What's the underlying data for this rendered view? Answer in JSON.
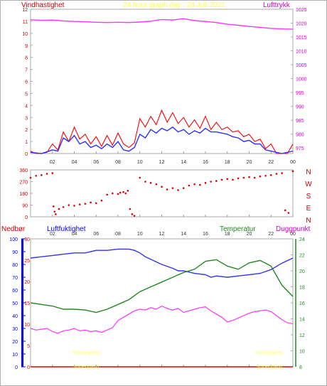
{
  "header": {
    "left_label": "Vindhastighet",
    "title": "24 hour graph day : 24 Juli 2021",
    "right_label": "Lufttrykk"
  },
  "colors": {
    "wind_speed": "#ff0000",
    "wind_avg": "#3030ff",
    "pressure": "#ff33ff",
    "direction": "#dd0000",
    "humidity": "#3333ee",
    "temperature": "#228822",
    "dewpoint": "#ff33ff",
    "rain": "#dd0000",
    "sun": "#ffff66",
    "left_axis": "#cc0000",
    "right_axis": "#cc00cc",
    "temp_axis": "#228822",
    "rain_axis": "#0000ee"
  },
  "x_ticks": [
    "02",
    "04",
    "06",
    "08",
    "10",
    "12",
    "14",
    "16",
    "18",
    "20",
    "22",
    "00"
  ],
  "panel1": {
    "left_ticks": [
      "0",
      "1",
      "2",
      "3",
      "4",
      "5",
      "6",
      "7",
      "8",
      "9",
      "10",
      "11",
      "12"
    ],
    "right_ticks": [
      "975",
      "980",
      "985",
      "990",
      "995",
      "1000",
      "1005",
      "1010",
      "1015",
      "1020",
      "1025"
    ]
  },
  "panel2": {
    "left_ticks": [
      "0",
      "90",
      "180",
      "270",
      "360"
    ],
    "compass": [
      "N",
      "W",
      "S",
      "E",
      "N"
    ]
  },
  "panel3": {
    "labels": {
      "rain": "Nedbør",
      "humidity": "Luftfuktighet",
      "temperature": "Temperatur",
      "dewpoint": "Duggpunkt"
    },
    "rain_ticks": [
      "0",
      "10",
      "20",
      "30",
      "40",
      "50",
      "60",
      "70",
      "80",
      "90",
      "100"
    ],
    "hum_ticks": [
      "0",
      "5",
      "10",
      "15",
      "20",
      "25",
      "30"
    ],
    "temp_ticks": [
      "8",
      "10",
      "12",
      "14",
      "16",
      "18",
      "20",
      "22",
      "24"
    ],
    "sun_labels": [
      "Soloppgang",
      "Solnedgang",
      "Soloppgang",
      "Solnedgang"
    ]
  },
  "chart_data": [
    {
      "type": "line",
      "x_unit": "hour",
      "xlim": [
        0,
        24
      ],
      "ylim_left": [
        0,
        12
      ],
      "ylim_right": [
        973,
        1025
      ],
      "series": [
        {
          "name": "Vindhastighet",
          "axis": "left",
          "x": [
            0,
            0.5,
            1,
            1.5,
            2,
            2.5,
            3,
            3.5,
            4,
            4.5,
            5,
            5.5,
            6,
            6.5,
            7,
            7.5,
            8,
            8.5,
            9,
            9.5,
            10,
            10.5,
            11,
            11.5,
            12,
            12.5,
            13,
            13.5,
            14,
            14.5,
            15,
            15.5,
            16,
            16.5,
            17,
            17.5,
            18,
            18.5,
            19,
            19.5,
            20,
            20.5,
            21,
            21.5,
            22,
            22.5,
            23,
            23.5,
            24
          ],
          "values": [
            0.2,
            0.0,
            0.0,
            0.1,
            0.8,
            0.3,
            1.8,
            1.0,
            2.2,
            1.2,
            1.6,
            0.8,
            1.4,
            0.6,
            1.5,
            0.7,
            1.7,
            0.8,
            0.5,
            0.9,
            2.9,
            2.2,
            3.1,
            2.4,
            3.6,
            2.6,
            3.4,
            2.5,
            3.0,
            2.2,
            2.8,
            2.1,
            3.1,
            2.0,
            2.6,
            2.0,
            2.2,
            1.8,
            1.9,
            1.4,
            1.6,
            1.0,
            1.2,
            0.4,
            0.8,
            0.0,
            0.0,
            0.0,
            0.8
          ]
        },
        {
          "name": "",
          "axis": "left",
          "x": [
            0,
            1,
            2,
            2.5,
            3,
            3.5,
            4,
            4.5,
            5,
            5.5,
            6,
            6.5,
            7,
            7.5,
            8,
            8.5,
            9,
            9.5,
            10,
            10.5,
            11,
            11.5,
            12,
            12.5,
            13,
            13.5,
            14,
            14.5,
            15,
            15.5,
            16,
            16.5,
            17,
            17.5,
            18,
            18.5,
            19,
            19.5,
            20,
            20.5,
            21,
            21.5,
            22,
            23,
            24
          ],
          "values": [
            0.1,
            0.0,
            0.3,
            0.2,
            1.3,
            1.0,
            1.5,
            0.8,
            1.0,
            0.5,
            0.7,
            0.4,
            0.8,
            0.5,
            1.0,
            0.3,
            0.2,
            0.5,
            1.6,
            1.3,
            2.0,
            1.7,
            2.1,
            1.9,
            2.2,
            1.8,
            2.0,
            1.6,
            1.9,
            1.7,
            2.1,
            1.8,
            1.8,
            1.7,
            1.6,
            1.4,
            1.3,
            1.0,
            1.1,
            0.8,
            0.8,
            0.3,
            0.2,
            0.0,
            0.2
          ]
        },
        {
          "name": "Lufttrykk",
          "axis": "right",
          "x": [
            0,
            1,
            2,
            3,
            4,
            5,
            6,
            7,
            8,
            9,
            10,
            11,
            12,
            13,
            14,
            15,
            16,
            17,
            18,
            19,
            20,
            21,
            22,
            23,
            24
          ],
          "values": [
            1021.2,
            1021.0,
            1021.1,
            1020.8,
            1020.6,
            1020.5,
            1020.3,
            1020.2,
            1020.3,
            1020.2,
            1020.4,
            1020.7,
            1021.3,
            1021.1,
            1021.6,
            1020.9,
            1020.6,
            1020.2,
            1019.6,
            1019.2,
            1018.8,
            1018.5,
            1018.1,
            1017.9,
            1017.8
          ]
        }
      ]
    },
    {
      "type": "scatter",
      "x_unit": "hour",
      "xlim": [
        0,
        24
      ],
      "ylim": [
        0,
        360
      ],
      "series": [
        {
          "name": "",
          "x": [
            0,
            0.5,
            1,
            1.5,
            2,
            2.1,
            2.2,
            2.3,
            2.6,
            3,
            3.5,
            4,
            4.5,
            5,
            5.5,
            6,
            6.5,
            7,
            7.5,
            8,
            8.2,
            8.5,
            8.7,
            8.9,
            9.1,
            9.3,
            9.5,
            10,
            10.5,
            11,
            11.5,
            12,
            12.5,
            13,
            13.5,
            14,
            14.5,
            15,
            15.5,
            16,
            16.5,
            17,
            17.5,
            18,
            18.5,
            19,
            19.5,
            20,
            20.5,
            21,
            21.5,
            22,
            22.5,
            23,
            23.3,
            23.6,
            24
          ],
          "values": [
            300,
            315,
            320,
            330,
            335,
            80,
            40,
            20,
            60,
            75,
            90,
            85,
            95,
            100,
            110,
            105,
            125,
            170,
            180,
            175,
            185,
            190,
            180,
            200,
            60,
            20,
            8,
            300,
            270,
            260,
            250,
            230,
            210,
            220,
            205,
            220,
            240,
            250,
            245,
            260,
            270,
            275,
            285,
            290,
            285,
            295,
            300,
            305,
            300,
            310,
            315,
            320,
            330,
            335,
            50,
            30,
            350
          ]
        }
      ]
    },
    {
      "type": "line",
      "x_unit": "hour",
      "xlim": [
        0,
        24
      ],
      "ylim_rain": [
        0,
        100
      ],
      "ylim_temp": [
        8,
        24
      ],
      "series": [
        {
          "name": "Luftfuktighet",
          "axis": "rain",
          "x": [
            0,
            1,
            2,
            3,
            4,
            5,
            6,
            7,
            8,
            9,
            9.5,
            10,
            10.5,
            11,
            11.5,
            12,
            13,
            13.5,
            14,
            15,
            16,
            16.5,
            17,
            18,
            19,
            20,
            21,
            22,
            23,
            24
          ],
          "values": [
            85,
            86,
            87,
            88,
            89,
            89,
            91,
            91,
            92,
            92,
            91,
            89,
            86,
            84,
            82,
            80,
            77,
            75,
            75,
            73,
            72,
            70,
            71,
            70,
            71,
            72,
            73,
            76,
            81,
            85
          ]
        },
        {
          "name": "Temperatur",
          "axis": "temp",
          "x": [
            0,
            1,
            2,
            3,
            4,
            5,
            6,
            7,
            8,
            9,
            10,
            11,
            12,
            13,
            14,
            15,
            16,
            17,
            18,
            19,
            20,
            21,
            22,
            23,
            24
          ],
          "values": [
            16.0,
            15.8,
            15.6,
            15.2,
            15.2,
            15.1,
            14.8,
            15.2,
            15.8,
            16.4,
            17.4,
            18.0,
            18.6,
            19.2,
            19.8,
            20.2,
            21.2,
            21.4,
            20.6,
            20.2,
            21.0,
            21.3,
            20.6,
            18.2,
            16.8
          ]
        },
        {
          "name": "Duggpunkt",
          "axis": "temp",
          "x": [
            0,
            0.5,
            1,
            1.5,
            2,
            2.5,
            3,
            3.5,
            4,
            4.5,
            5,
            5.5,
            6,
            6.5,
            7,
            7.5,
            8,
            8.5,
            9,
            9.5,
            10,
            10.5,
            11,
            11.5,
            12,
            12.5,
            13,
            13.5,
            14,
            14.5,
            15,
            15.5,
            16,
            16.5,
            17,
            17.5,
            18,
            18.5,
            19,
            19.5,
            20,
            20.5,
            21,
            21.5,
            22,
            22.5,
            23,
            23.5,
            24
          ],
          "values": [
            12.8,
            12.6,
            12.7,
            12.8,
            12.4,
            12.2,
            12.5,
            12.6,
            12.8,
            12.5,
            12.6,
            12.4,
            12.5,
            12.3,
            12.6,
            12.9,
            13.8,
            14.2,
            14.6,
            15.0,
            15.2,
            15.1,
            15.4,
            15.2,
            15.6,
            15.3,
            15.1,
            15.3,
            14.8,
            15.0,
            15.2,
            15.4,
            15.5,
            15.0,
            14.6,
            14.2,
            13.6,
            13.8,
            14.1,
            14.4,
            14.7,
            14.9,
            15.0,
            15.1,
            14.9,
            14.4,
            13.9,
            13.5,
            13.4
          ]
        },
        {
          "name": "Nedbør",
          "axis": "rain",
          "x": [
            0,
            24
          ],
          "values": [
            0,
            0
          ]
        }
      ]
    }
  ]
}
